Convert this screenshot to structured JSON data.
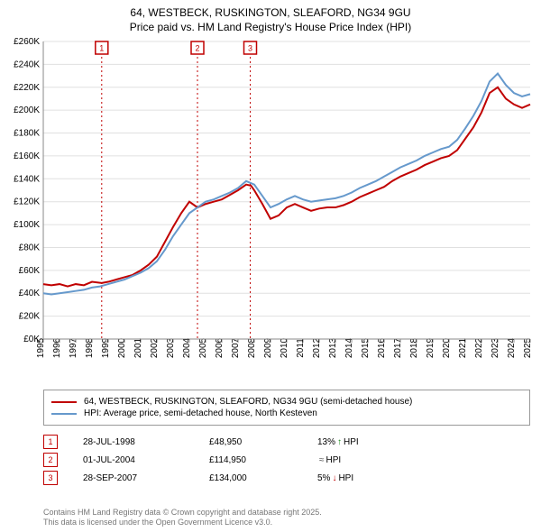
{
  "title_line1": "64, WESTBECK, RUSKINGTON, SLEAFORD, NG34 9GU",
  "title_line2": "Price paid vs. HM Land Registry's House Price Index (HPI)",
  "chart": {
    "type": "line",
    "background_color": "#ffffff",
    "grid_color": "#e0e0e0",
    "axis_color": "#888888",
    "x_years": [
      1995,
      1996,
      1997,
      1998,
      1999,
      2000,
      2001,
      2002,
      2003,
      2004,
      2005,
      2006,
      2007,
      2008,
      2009,
      2010,
      2011,
      2012,
      2013,
      2014,
      2015,
      2016,
      2017,
      2018,
      2019,
      2020,
      2021,
      2022,
      2023,
      2024,
      2025
    ],
    "xlim": [
      1995,
      2025
    ],
    "ylim": [
      0,
      260000
    ],
    "ytick_step": 20000,
    "ytick_prefix": "£",
    "ytick_suffix": "K",
    "series": [
      {
        "name": "price_paid",
        "color": "#c00000",
        "width": 2,
        "points": [
          [
            1995,
            48000
          ],
          [
            1995.5,
            47000
          ],
          [
            1996,
            48000
          ],
          [
            1996.5,
            46000
          ],
          [
            1997,
            48000
          ],
          [
            1997.5,
            47000
          ],
          [
            1998,
            50000
          ],
          [
            1998.6,
            48950
          ],
          [
            1999,
            50000
          ],
          [
            1999.5,
            52000
          ],
          [
            2000,
            54000
          ],
          [
            2000.5,
            56000
          ],
          [
            2001,
            60000
          ],
          [
            2001.5,
            65000
          ],
          [
            2002,
            72000
          ],
          [
            2002.5,
            85000
          ],
          [
            2003,
            98000
          ],
          [
            2003.5,
            110000
          ],
          [
            2004,
            120000
          ],
          [
            2004.5,
            114950
          ],
          [
            2005,
            118000
          ],
          [
            2005.5,
            120000
          ],
          [
            2006,
            122000
          ],
          [
            2006.5,
            126000
          ],
          [
            2007,
            130000
          ],
          [
            2007.5,
            135000
          ],
          [
            2007.8,
            134000
          ],
          [
            2008,
            130000
          ],
          [
            2008.5,
            118000
          ],
          [
            2009,
            105000
          ],
          [
            2009.5,
            108000
          ],
          [
            2010,
            115000
          ],
          [
            2010.5,
            118000
          ],
          [
            2011,
            115000
          ],
          [
            2011.5,
            112000
          ],
          [
            2012,
            114000
          ],
          [
            2012.5,
            115000
          ],
          [
            2013,
            115000
          ],
          [
            2013.5,
            117000
          ],
          [
            2014,
            120000
          ],
          [
            2014.5,
            124000
          ],
          [
            2015,
            127000
          ],
          [
            2015.5,
            130000
          ],
          [
            2016,
            133000
          ],
          [
            2016.5,
            138000
          ],
          [
            2017,
            142000
          ],
          [
            2017.5,
            145000
          ],
          [
            2018,
            148000
          ],
          [
            2018.5,
            152000
          ],
          [
            2019,
            155000
          ],
          [
            2019.5,
            158000
          ],
          [
            2020,
            160000
          ],
          [
            2020.5,
            165000
          ],
          [
            2021,
            175000
          ],
          [
            2021.5,
            185000
          ],
          [
            2022,
            198000
          ],
          [
            2022.5,
            215000
          ],
          [
            2023,
            220000
          ],
          [
            2023.5,
            210000
          ],
          [
            2024,
            205000
          ],
          [
            2024.5,
            202000
          ],
          [
            2025,
            205000
          ]
        ]
      },
      {
        "name": "hpi",
        "color": "#6699cc",
        "width": 2,
        "points": [
          [
            1995,
            40000
          ],
          [
            1995.5,
            39000
          ],
          [
            1996,
            40000
          ],
          [
            1996.5,
            41000
          ],
          [
            1997,
            42000
          ],
          [
            1997.5,
            43000
          ],
          [
            1998,
            45000
          ],
          [
            1998.5,
            46000
          ],
          [
            1999,
            48000
          ],
          [
            1999.5,
            50000
          ],
          [
            2000,
            52000
          ],
          [
            2000.5,
            55000
          ],
          [
            2001,
            58000
          ],
          [
            2001.5,
            62000
          ],
          [
            2002,
            68000
          ],
          [
            2002.5,
            78000
          ],
          [
            2003,
            90000
          ],
          [
            2003.5,
            100000
          ],
          [
            2004,
            110000
          ],
          [
            2004.5,
            115000
          ],
          [
            2005,
            120000
          ],
          [
            2005.5,
            122000
          ],
          [
            2006,
            125000
          ],
          [
            2006.5,
            128000
          ],
          [
            2007,
            132000
          ],
          [
            2007.5,
            138000
          ],
          [
            2008,
            135000
          ],
          [
            2008.5,
            125000
          ],
          [
            2009,
            115000
          ],
          [
            2009.5,
            118000
          ],
          [
            2010,
            122000
          ],
          [
            2010.5,
            125000
          ],
          [
            2011,
            122000
          ],
          [
            2011.5,
            120000
          ],
          [
            2012,
            121000
          ],
          [
            2012.5,
            122000
          ],
          [
            2013,
            123000
          ],
          [
            2013.5,
            125000
          ],
          [
            2014,
            128000
          ],
          [
            2014.5,
            132000
          ],
          [
            2015,
            135000
          ],
          [
            2015.5,
            138000
          ],
          [
            2016,
            142000
          ],
          [
            2016.5,
            146000
          ],
          [
            2017,
            150000
          ],
          [
            2017.5,
            153000
          ],
          [
            2018,
            156000
          ],
          [
            2018.5,
            160000
          ],
          [
            2019,
            163000
          ],
          [
            2019.5,
            166000
          ],
          [
            2020,
            168000
          ],
          [
            2020.5,
            174000
          ],
          [
            2021,
            184000
          ],
          [
            2021.5,
            195000
          ],
          [
            2022,
            208000
          ],
          [
            2022.5,
            225000
          ],
          [
            2023,
            232000
          ],
          [
            2023.5,
            222000
          ],
          [
            2024,
            215000
          ],
          [
            2024.5,
            212000
          ],
          [
            2025,
            214000
          ]
        ]
      }
    ],
    "markers": [
      {
        "num": "1",
        "x": 1998.6
      },
      {
        "num": "2",
        "x": 2004.5
      },
      {
        "num": "3",
        "x": 2007.75
      }
    ]
  },
  "legend": {
    "items": [
      {
        "color": "#c00000",
        "label": "64, WESTBECK, RUSKINGTON, SLEAFORD, NG34 9GU (semi-detached house)"
      },
      {
        "color": "#6699cc",
        "label": "HPI: Average price, semi-detached house, North Kesteven"
      }
    ]
  },
  "events": [
    {
      "num": "1",
      "date": "28-JUL-1998",
      "price": "£48,950",
      "diff": "13%",
      "arrow": "↑",
      "arrow_color": "#1a8a1a",
      "suffix": "HPI"
    },
    {
      "num": "2",
      "date": "01-JUL-2004",
      "price": "£114,950",
      "diff": "",
      "arrow": "≈",
      "arrow_color": "#555",
      "suffix": "HPI"
    },
    {
      "num": "3",
      "date": "28-SEP-2007",
      "price": "£134,000",
      "diff": "5%",
      "arrow": "↓",
      "arrow_color": "#c00000",
      "suffix": "HPI"
    }
  ],
  "footer_line1": "Contains HM Land Registry data © Crown copyright and database right 2025.",
  "footer_line2": "This data is licensed under the Open Government Licence v3.0."
}
